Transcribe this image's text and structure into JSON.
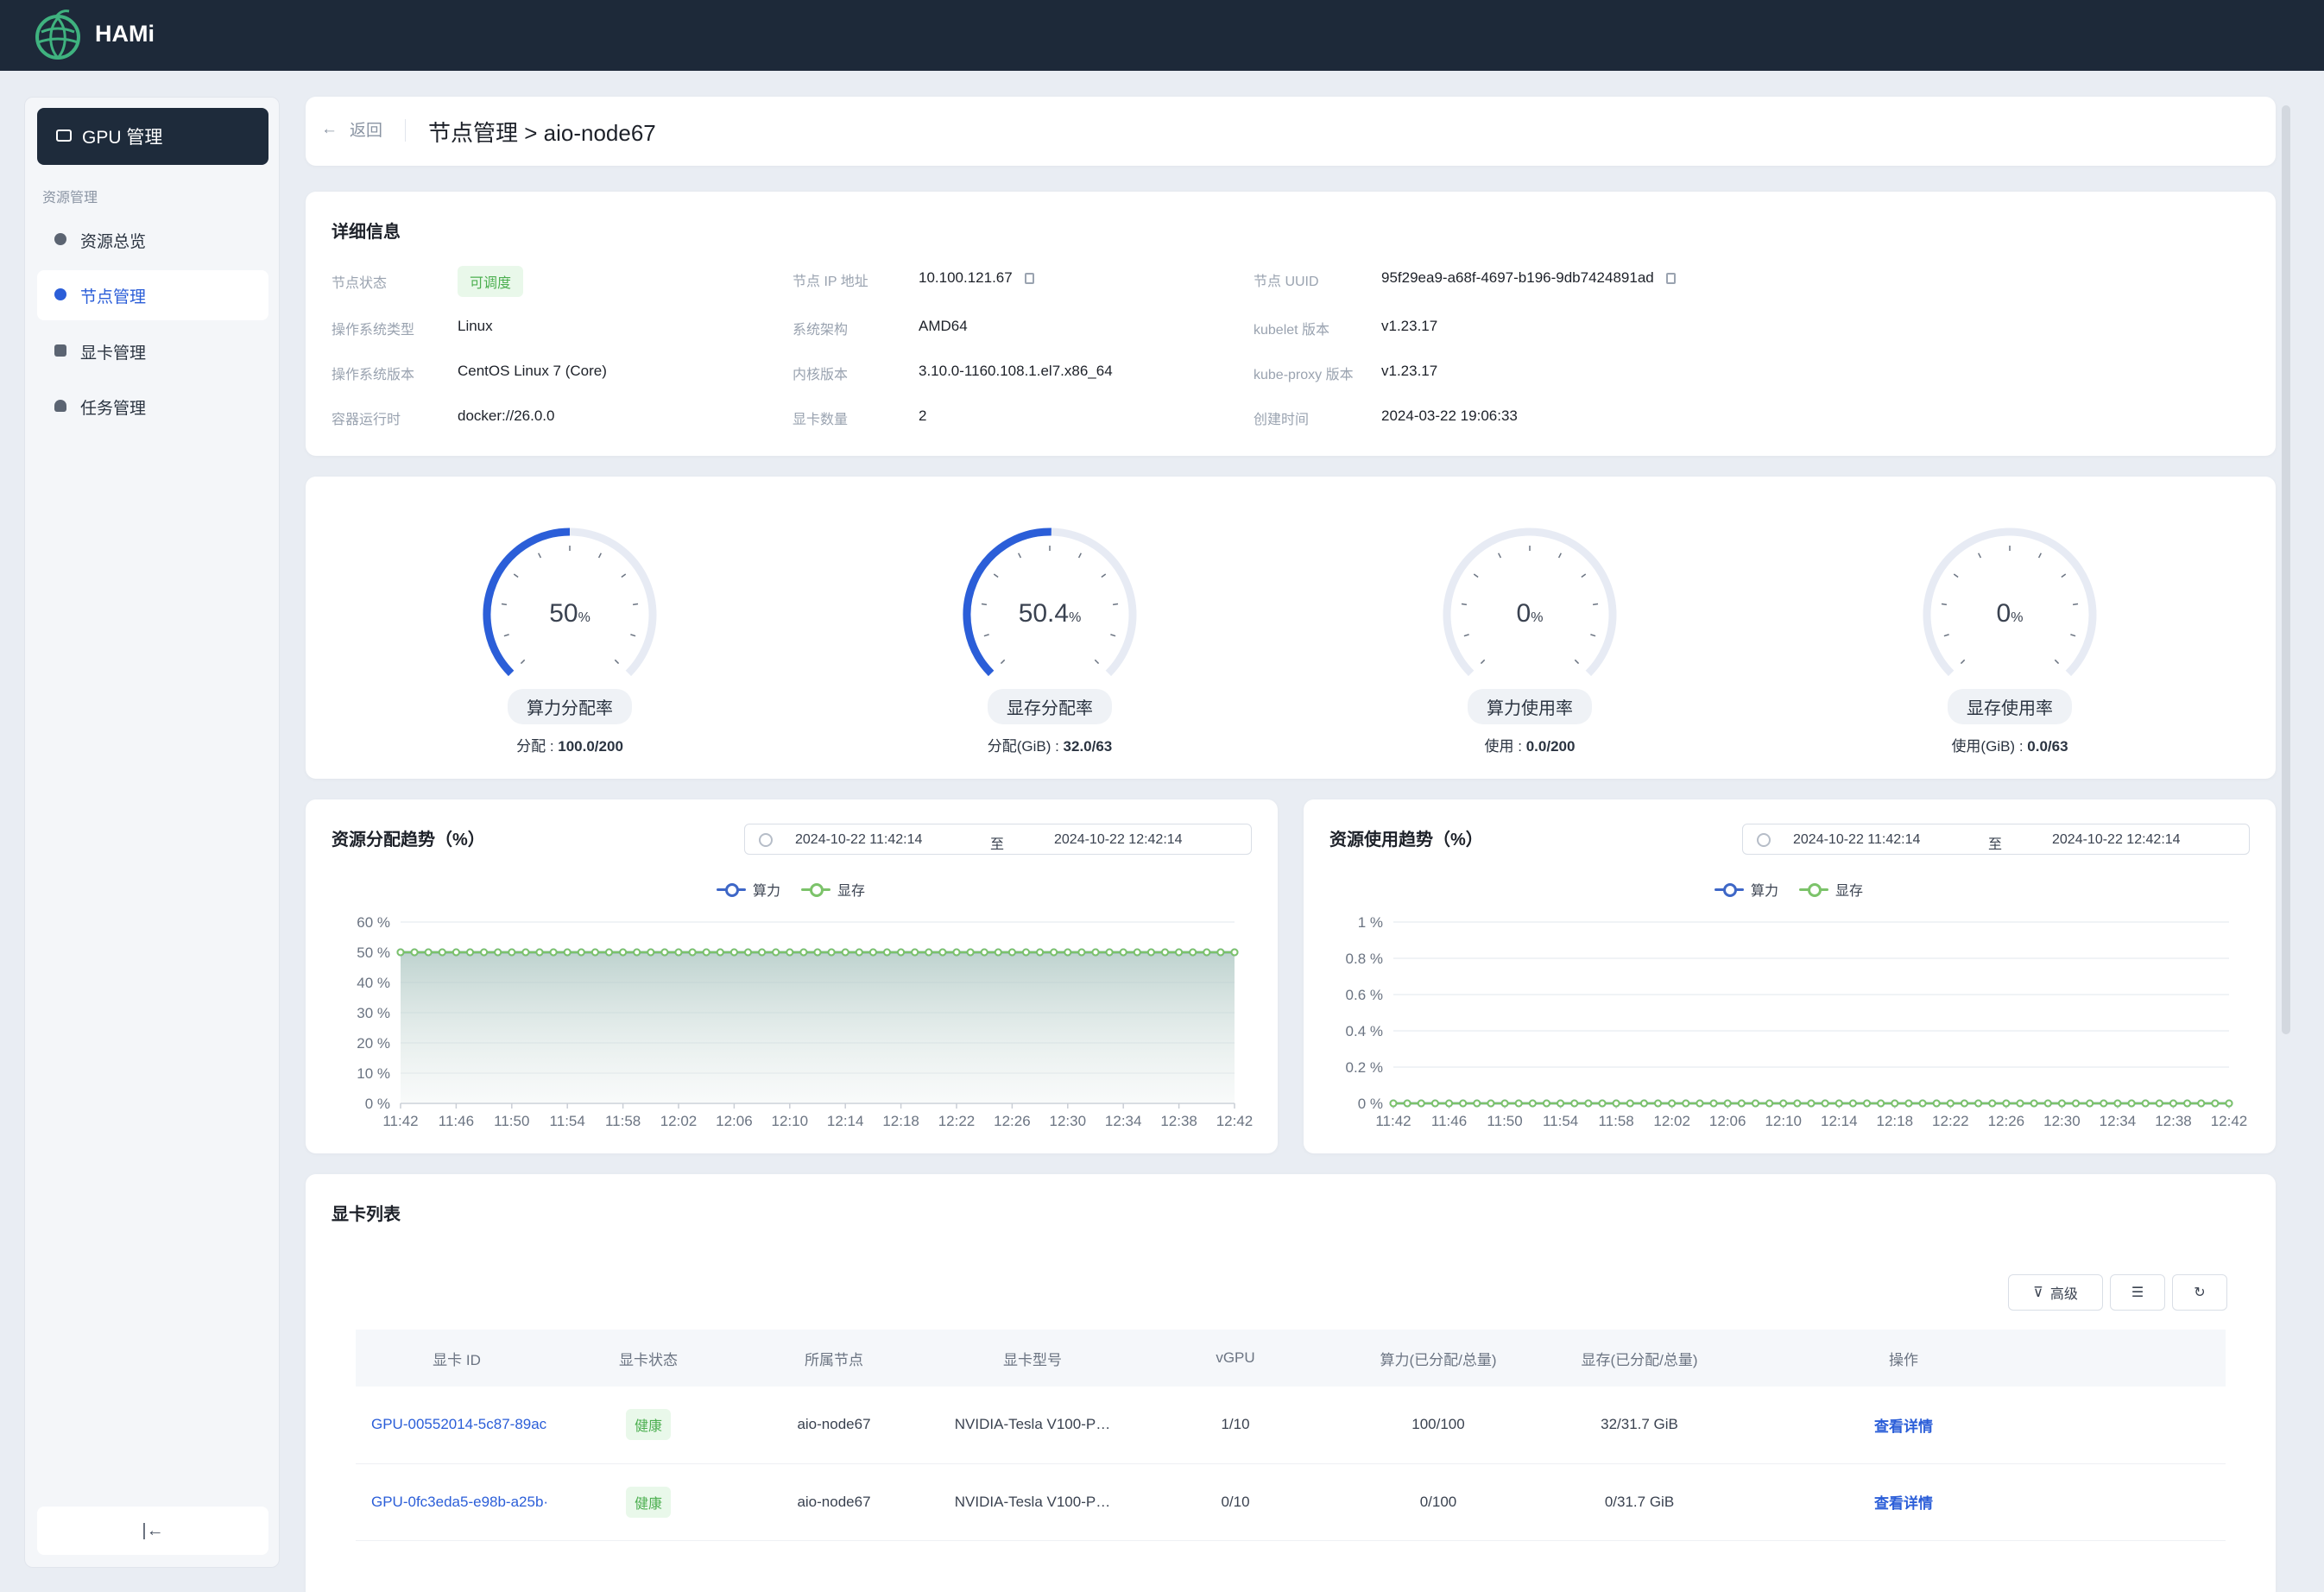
{
  "app": {
    "name": "HAMi"
  },
  "sidebar": {
    "header": "GPU 管理",
    "group_label": "资源管理",
    "items": [
      {
        "label": "资源总览",
        "active": false
      },
      {
        "label": "节点管理",
        "active": true
      },
      {
        "label": "显卡管理",
        "active": false
      },
      {
        "label": "任务管理",
        "active": false
      }
    ],
    "collapse_icon": "|←"
  },
  "header": {
    "back_label": "返回",
    "title": "节点管理 > aio-node67"
  },
  "details": {
    "title": "详细信息",
    "fields": [
      {
        "label": "节点状态",
        "value": "可调度"
      },
      {
        "label": "节点 IP 地址",
        "value": "10.100.121.67"
      },
      {
        "label": "节点 UUID",
        "value": "95f29ea9-a68f-4697-b196-9db7424891ad"
      },
      {
        "label": "操作系统类型",
        "value": "Linux"
      },
      {
        "label": "系统架构",
        "value": "AMD64"
      },
      {
        "label": "kubelet 版本",
        "value": "v1.23.17"
      },
      {
        "label": "操作系统版本",
        "value": "CentOS Linux 7 (Core)"
      },
      {
        "label": "内核版本",
        "value": "3.10.0-1160.108.1.el7.x86_64"
      },
      {
        "label": "kube-proxy 版本",
        "value": "v1.23.17"
      },
      {
        "label": "容器运行时",
        "value": "docker://26.0.0"
      },
      {
        "label": "显卡数量",
        "value": "2"
      },
      {
        "label": "创建时间",
        "value": "2024-03-22 19:06:33"
      }
    ]
  },
  "gauges": [
    {
      "value": "50",
      "fraction": 0.5,
      "name": "算力分配率",
      "sub_label": "分配 : ",
      "sub_value": "100.0/200"
    },
    {
      "value": "50.4",
      "fraction": 0.504,
      "name": "显存分配率",
      "sub_label": "分配(GiB) : ",
      "sub_value": "32.0/63"
    },
    {
      "value": "0",
      "fraction": 0,
      "name": "算力使用率",
      "sub_label": "使用 : ",
      "sub_value": "0.0/200"
    },
    {
      "value": "0",
      "fraction": 0,
      "name": "显存使用率",
      "sub_label": "使用(GiB) : ",
      "sub_value": "0.0/63"
    }
  ],
  "gauge_pct_unit": "%",
  "colors": {
    "accent": "#2b5ed8",
    "series_compute": "#3e67c7",
    "series_memory": "#7cc36a",
    "topbar": "#1d2939"
  },
  "chart_data": [
    {
      "type": "area",
      "title": "资源分配趋势（%）",
      "date_from": "2024-10-22 11:42:14",
      "date_sep": "至",
      "date_to": "2024-10-22 12:42:14",
      "x": [
        "11:42",
        "11:46",
        "11:50",
        "11:54",
        "11:58",
        "12:02",
        "12:06",
        "12:10",
        "12:14",
        "12:18",
        "12:22",
        "12:26",
        "12:30",
        "12:34",
        "12:38",
        "12:42"
      ],
      "y_ticks": [
        "0 %",
        "10 %",
        "20 %",
        "30 %",
        "40 %",
        "50 %",
        "60 %"
      ],
      "ylim": [
        0,
        60
      ],
      "point_count": 61,
      "series": [
        {
          "name": "算力",
          "value": 50
        },
        {
          "name": "显存",
          "value": 50
        }
      ]
    },
    {
      "type": "line",
      "title": "资源使用趋势（%）",
      "date_from": "2024-10-22 11:42:14",
      "date_sep": "至",
      "date_to": "2024-10-22 12:42:14",
      "x": [
        "11:42",
        "11:46",
        "11:50",
        "11:54",
        "11:58",
        "12:02",
        "12:06",
        "12:10",
        "12:14",
        "12:18",
        "12:22",
        "12:26",
        "12:30",
        "12:34",
        "12:38",
        "12:42"
      ],
      "y_ticks": [
        "0 %",
        "0.2 %",
        "0.4 %",
        "0.6 %",
        "0.8 %",
        "1 %"
      ],
      "ylim": [
        0,
        1
      ],
      "point_count": 61,
      "series": [
        {
          "name": "算力",
          "value": 0
        },
        {
          "name": "显存",
          "value": 0
        }
      ]
    }
  ],
  "gpu_list": {
    "title": "显卡列表",
    "advanced_label": "高级",
    "columns": [
      "显卡 ID",
      "显卡状态",
      "所属节点",
      "显卡型号",
      "vGPU",
      "算力(已分配/总量)",
      "显存(已分配/总量)",
      "操作"
    ],
    "rows": [
      {
        "id": "GPU-00552014-5c87-89ac",
        "status": "健康",
        "node": "aio-node67",
        "model": "NVIDIA-Tesla V100-P…",
        "vgpu": "1/10",
        "compute": "100/100",
        "memory": "32/31.7 GiB",
        "action": "查看详情"
      },
      {
        "id": "GPU-0fc3eda5-e98b-a25b·",
        "status": "健康",
        "node": "aio-node67",
        "model": "NVIDIA-Tesla V100-P…",
        "vgpu": "0/10",
        "compute": "0/100",
        "memory": "0/31.7 GiB",
        "action": "查看详情"
      }
    ]
  }
}
